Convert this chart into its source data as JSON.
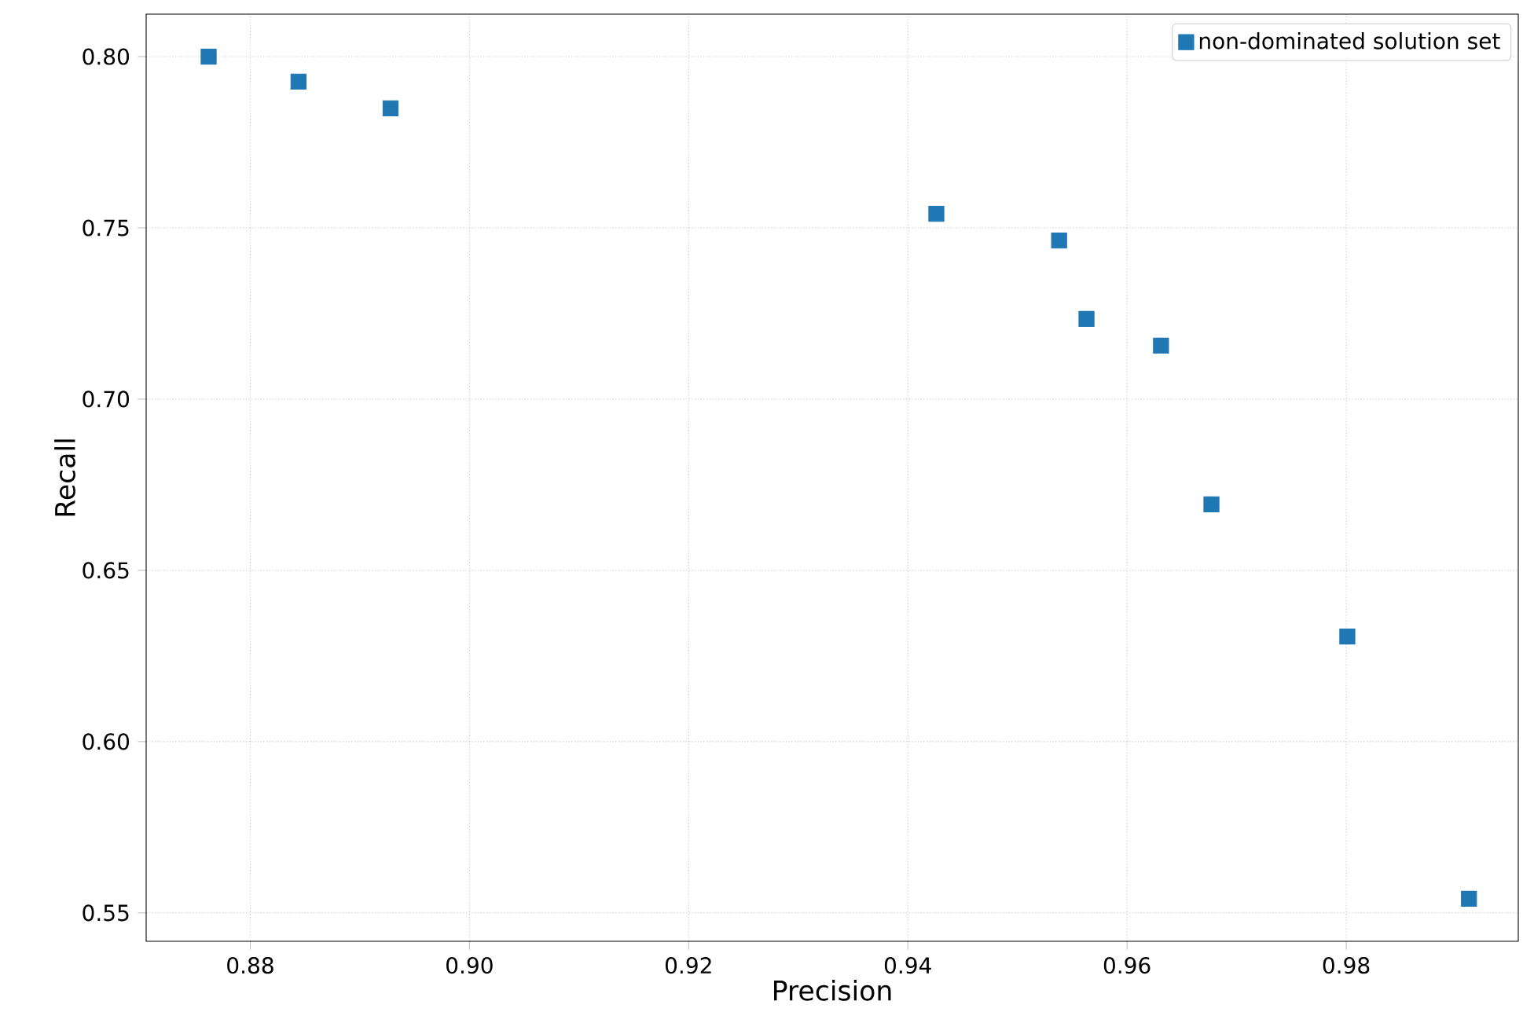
{
  "chart_data": {
    "type": "scatter",
    "xlabel": "Precision",
    "ylabel": "Recall",
    "x": [
      0.8762,
      0.8844,
      0.8928,
      0.9426,
      0.9538,
      0.9563,
      0.9631,
      0.9677,
      0.9801,
      0.9912
    ],
    "series": [
      {
        "name": "non-dominated solution set",
        "color": "#1f77b4",
        "values": [
          0.8,
          0.7927,
          0.7849,
          0.7541,
          0.7463,
          0.7234,
          0.7156,
          0.6693,
          0.6307,
          0.5541
        ]
      }
    ],
    "xlim": [
      0.8705,
      0.9957
    ],
    "ylim": [
      0.5417,
      0.8124
    ],
    "xticks": [
      0.88,
      {
        "value": 0.9,
        "label": "0.90"
      },
      0.92,
      0.94,
      0.96,
      0.98
    ],
    "yticks": [
      0.55,
      {
        "value": 0.6,
        "label": "0.60"
      },
      0.65,
      {
        "value": 0.7,
        "label": "0.70"
      },
      0.75,
      {
        "value": 0.8,
        "label": "0.80"
      }
    ],
    "grid": true,
    "legend": "top right",
    "marker": "square"
  }
}
